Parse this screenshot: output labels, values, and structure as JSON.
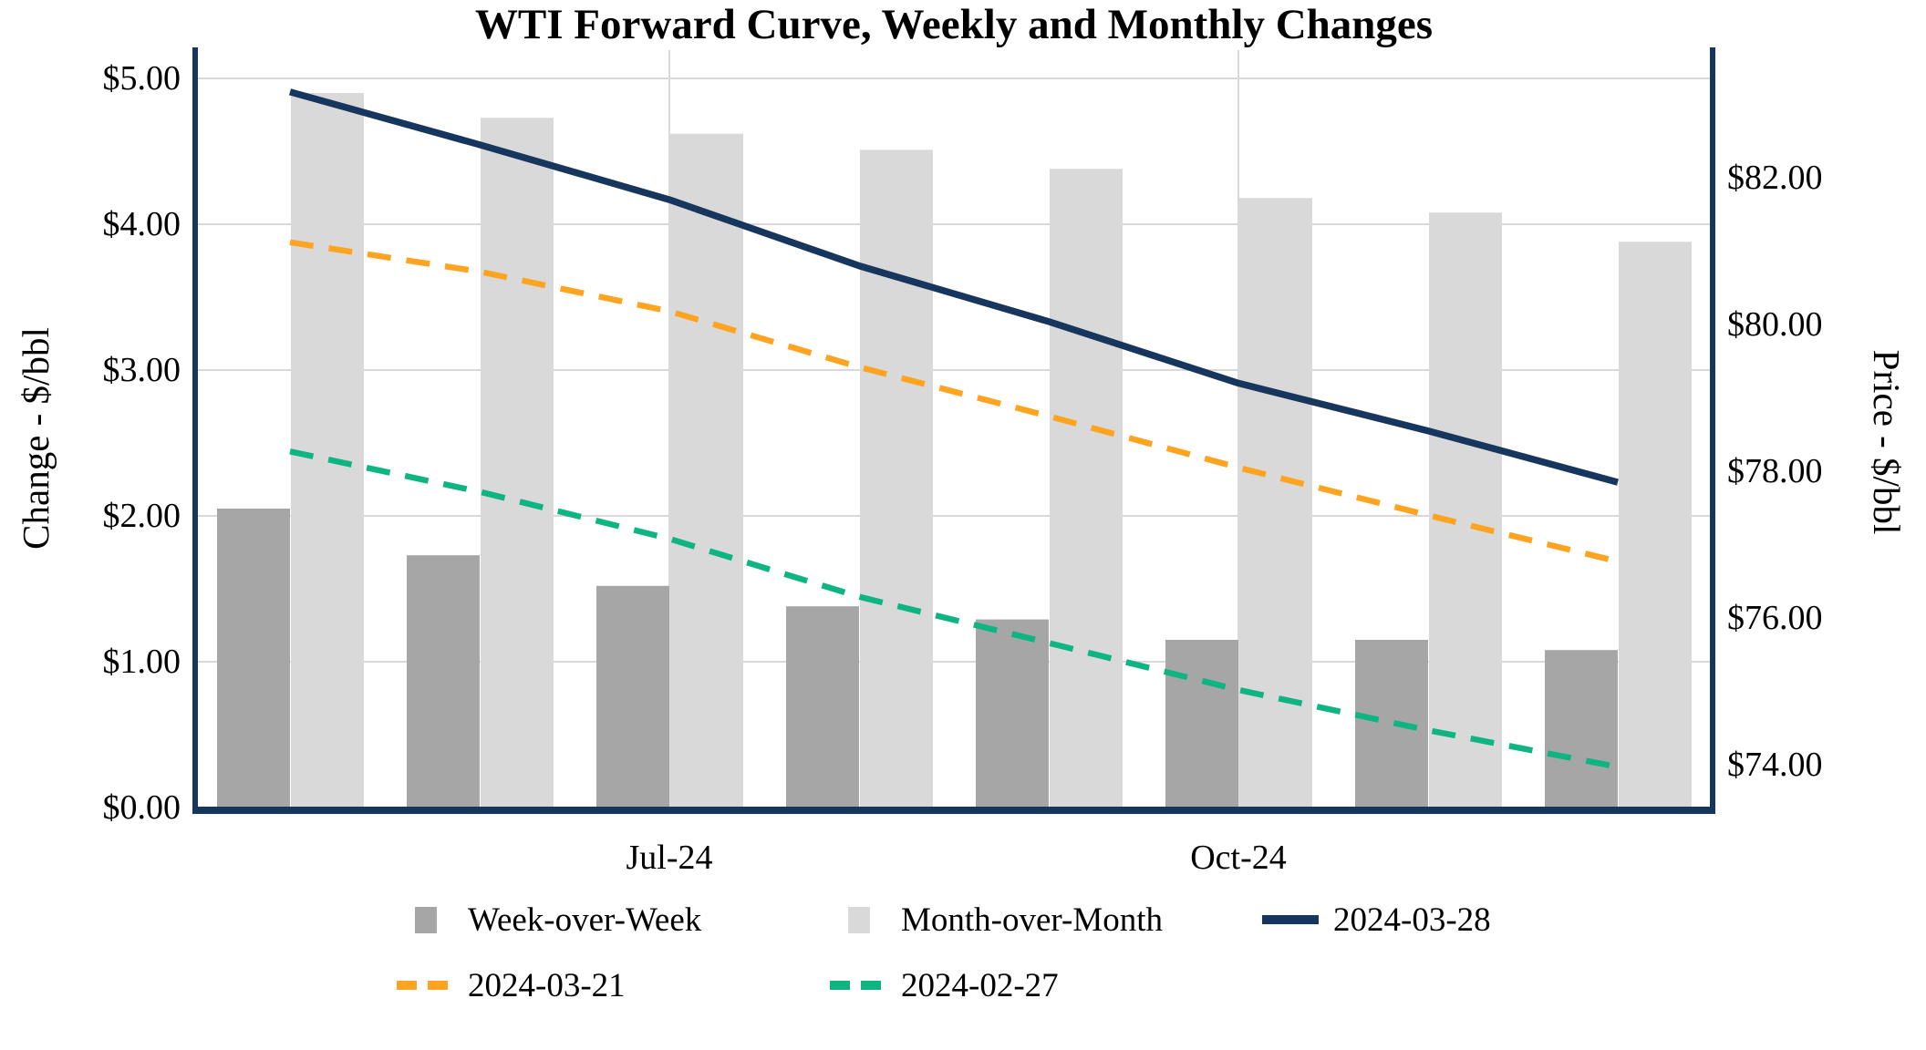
{
  "title": "WTI Forward Curve, Weekly and Monthly Changes",
  "chart_data": {
    "type": "bar",
    "subtype": "combo-bar-line-dual-axis",
    "title": "WTI Forward Curve, Weekly and Monthly Changes",
    "categories": [
      "",
      "",
      "Jul-24",
      "",
      "",
      "Oct-24",
      "",
      ""
    ],
    "left_axis": {
      "label": "Change - $/bbl",
      "tick_labels": [
        "$0.00",
        "$1.00",
        "$2.00",
        "$3.00",
        "$4.00",
        "$5.00"
      ],
      "tick_values": [
        0,
        1,
        2,
        3,
        4,
        5
      ],
      "min": 0,
      "max": 5
    },
    "right_axis": {
      "label": "Price - $/bbl",
      "tick_labels": [
        "$74.00",
        "$76.00",
        "$78.00",
        "$80.00",
        "$82.00"
      ],
      "tick_values": [
        74,
        76,
        78,
        80,
        82
      ]
    },
    "series": [
      {
        "name": "Week-over-Week",
        "type": "bar",
        "axis": "left",
        "color": "#A6A6A6",
        "marker": "square",
        "values": [
          2.05,
          1.73,
          1.52,
          1.38,
          1.29,
          1.15,
          1.15,
          1.08
        ]
      },
      {
        "name": "Month-over-Month",
        "type": "bar",
        "axis": "left",
        "color": "#D9D9D9",
        "marker": "square",
        "values": [
          4.9,
          4.73,
          4.62,
          4.51,
          4.38,
          4.18,
          4.08,
          3.88
        ]
      },
      {
        "name": "2024-03-28",
        "type": "line",
        "line_style": "solid",
        "axis": "right",
        "color": "#17365D",
        "marker": "line",
        "values": [
          83.17,
          82.45,
          81.7,
          80.8,
          80.04,
          79.2,
          78.55,
          77.85
        ]
      },
      {
        "name": "2024-03-21",
        "type": "line",
        "line_style": "dashed",
        "axis": "right",
        "color": "#FFA420",
        "marker": "dashes",
        "values": [
          81.12,
          80.72,
          80.18,
          79.42,
          78.75,
          78.05,
          77.4,
          76.77
        ]
      },
      {
        "name": "2024-02-27",
        "type": "line",
        "line_style": "dashed",
        "axis": "right",
        "color": "#0EB583",
        "marker": "dashes",
        "values": [
          78.27,
          77.72,
          77.08,
          76.29,
          75.66,
          75.02,
          74.47,
          73.97
        ]
      }
    ],
    "grid": true,
    "grid_color": "#D9D9D9",
    "axis_color": "#17365D",
    "legend_position": "bottom"
  }
}
